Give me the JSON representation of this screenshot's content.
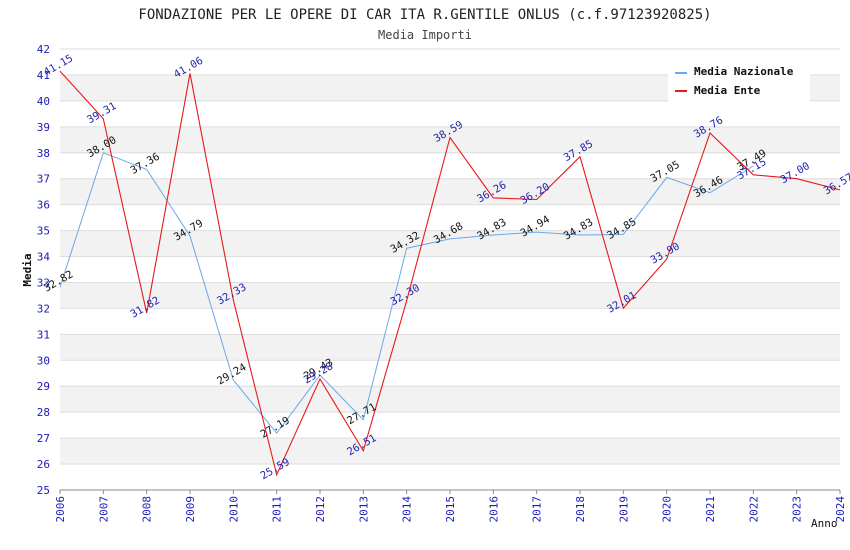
{
  "chart_data": {
    "type": "line",
    "title": "FONDAZIONE PER LE OPERE DI CAR ITA R.GENTILE ONLUS (c.f.97123920825)",
    "subtitle": "Media Importi",
    "xlabel": "Anno",
    "ylabel": "Media",
    "ylim": [
      25,
      42
    ],
    "yticks": [
      "25",
      "26",
      "27",
      "28",
      "29",
      "30",
      "31",
      "32",
      "33",
      "34",
      "35",
      "36",
      "37",
      "38",
      "39",
      "40",
      "41",
      "42"
    ],
    "categories": [
      "2006",
      "2007",
      "2008",
      "2009",
      "2010",
      "2011",
      "2012",
      "2013",
      "2014",
      "2015",
      "2016",
      "2017",
      "2018",
      "2019",
      "2020",
      "2021",
      "2022",
      "2023",
      "2024"
    ],
    "series": [
      {
        "name": "Media Nazionale",
        "color": "#6aa8e8",
        "values": [
          32.82,
          38.0,
          37.36,
          34.79,
          29.24,
          27.19,
          29.43,
          27.71,
          34.32,
          34.68,
          34.83,
          34.94,
          34.83,
          34.85,
          37.05,
          36.46,
          37.49,
          null,
          null
        ],
        "labels": [
          "32.82",
          "38.00",
          "37.36",
          "34.79",
          "29.24",
          "27.19",
          "29.43",
          "27.71",
          "34.32",
          "34.68",
          "34.83",
          "34.94",
          "34.83",
          "34.85",
          "37.05",
          "36.46",
          "37.49",
          null,
          null
        ]
      },
      {
        "name": "Media Ente",
        "color": "#e81818",
        "values": [
          41.15,
          39.31,
          31.82,
          41.06,
          32.33,
          25.59,
          29.28,
          26.51,
          32.3,
          38.59,
          36.26,
          36.2,
          37.85,
          32.01,
          33.9,
          38.76,
          37.15,
          37.0,
          36.57
        ],
        "labels": [
          "41.15",
          "39.31",
          "31.82",
          "41.06",
          "32.33",
          "25.59",
          "29.28",
          "26.51",
          "32.30",
          "38.59",
          "36.26",
          "36.20",
          "37.85",
          "32.01",
          "33.90",
          "38.76",
          "37.15",
          "37.00",
          "36.57"
        ]
      }
    ],
    "grid": true,
    "legend": "top-right"
  }
}
